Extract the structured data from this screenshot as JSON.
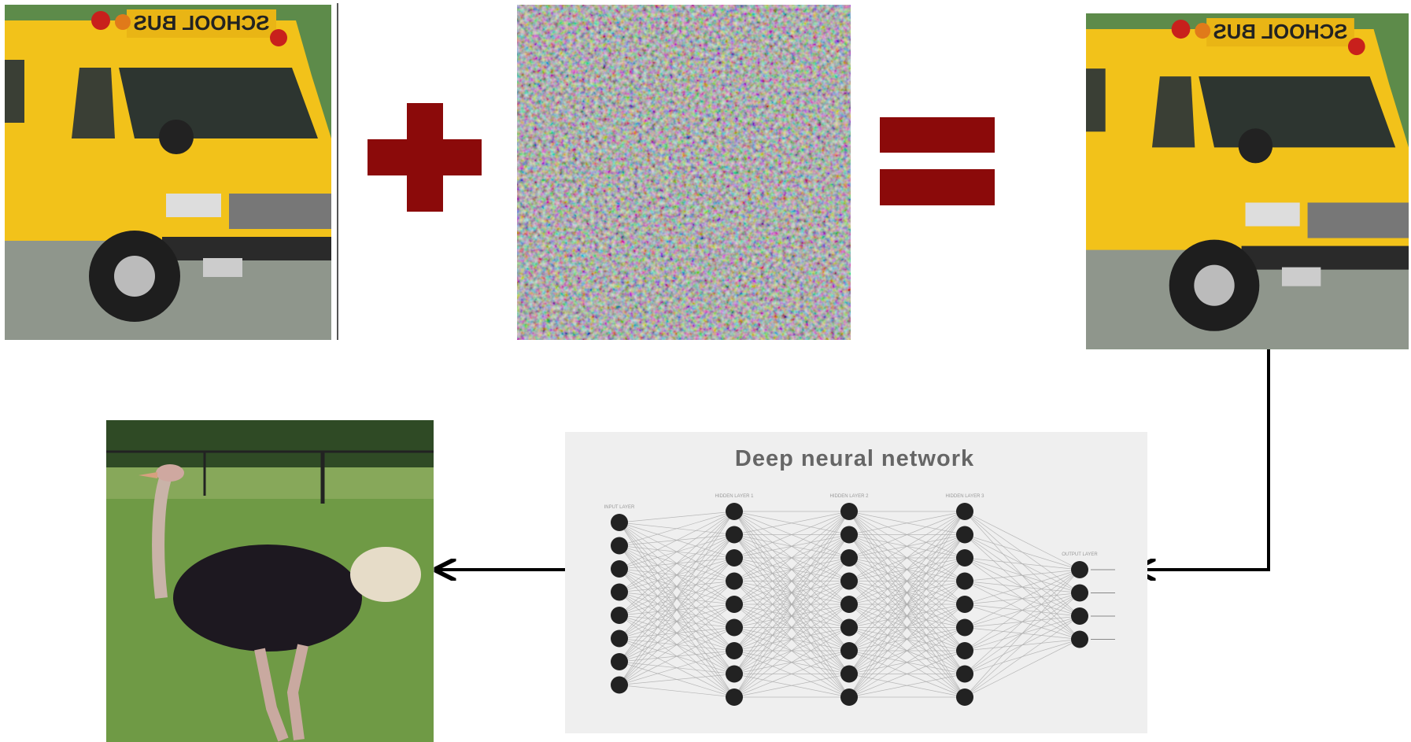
{
  "diagram": {
    "title": "Deep neural network",
    "layers": [
      "INPUT LAYER",
      "HIDDEN LAYER 1",
      "HIDDEN LAYER 2",
      "HIDDEN LAYER 3",
      "OUTPUT LAYER"
    ]
  },
  "images": {
    "clean_bus_sign": "SCHOOL BUS",
    "adversarial_bus_sign": "SCHOOL BUS"
  }
}
